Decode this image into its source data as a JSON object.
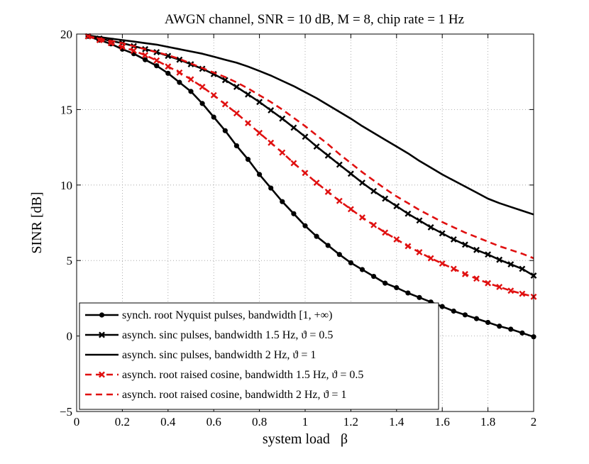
{
  "chart_data": {
    "type": "line",
    "title": "AWGN channel, SNR = 10 dB, M = 8, chip rate = 1 Hz",
    "xlabel": "system load   β",
    "ylabel": "SINR [dB]",
    "xlim": [
      0,
      2
    ],
    "ylim": [
      -5,
      20
    ],
    "grid": true,
    "legend_position": "bottom-left",
    "xticks": [
      0,
      0.2,
      0.4,
      0.6,
      0.8,
      1,
      1.2,
      1.4,
      1.6,
      1.8,
      2
    ],
    "xtick_labels": [
      "0",
      "0.2",
      "0.4",
      "0.6",
      "0.8",
      "1",
      "1.2",
      "1.4",
      "1.6",
      "1.8",
      "2"
    ],
    "yticks": [
      -5,
      0,
      5,
      10,
      15,
      20
    ],
    "ytick_labels": [
      "−5",
      "0",
      "5",
      "10",
      "15",
      "20"
    ],
    "x": [
      0.05,
      0.1,
      0.15,
      0.2,
      0.25,
      0.3,
      0.35,
      0.4,
      0.45,
      0.5,
      0.55,
      0.6,
      0.65,
      0.7,
      0.75,
      0.8,
      0.85,
      0.9,
      0.95,
      1.0,
      1.05,
      1.1,
      1.15,
      1.2,
      1.25,
      1.3,
      1.35,
      1.4,
      1.45,
      1.5,
      1.55,
      1.6,
      1.65,
      1.7,
      1.75,
      1.8,
      1.85,
      1.9,
      1.95,
      2.0
    ],
    "series": [
      {
        "name": "synch. root Nyquist pulses, bandwidth [1, +∞)",
        "color": "#000000",
        "dash": "solid",
        "marker": "dot",
        "values": [
          19.85,
          19.6,
          19.35,
          19.0,
          18.7,
          18.3,
          17.9,
          17.4,
          16.8,
          16.2,
          15.4,
          14.5,
          13.6,
          12.6,
          11.7,
          10.7,
          9.8,
          8.9,
          8.1,
          7.3,
          6.6,
          6.0,
          5.4,
          4.85,
          4.4,
          3.95,
          3.5,
          3.2,
          2.85,
          2.55,
          2.25,
          1.95,
          1.65,
          1.4,
          1.15,
          0.9,
          0.65,
          0.45,
          0.2,
          -0.05
        ]
      },
      {
        "name": "asynch. sinc pulses, bandwidth 1.5 Hz,  ϑ = 0.5",
        "color": "#000000",
        "dash": "solid",
        "marker": "x",
        "values": [
          19.85,
          19.7,
          19.55,
          19.4,
          19.2,
          19.0,
          18.8,
          18.55,
          18.3,
          18.0,
          17.7,
          17.35,
          16.95,
          16.5,
          16.0,
          15.5,
          14.95,
          14.4,
          13.8,
          13.2,
          12.55,
          11.95,
          11.35,
          10.75,
          10.15,
          9.6,
          9.1,
          8.6,
          8.1,
          7.65,
          7.2,
          6.8,
          6.4,
          6.05,
          5.7,
          5.4,
          5.05,
          4.75,
          4.45,
          4.0
        ]
      },
      {
        "name": "asynch. sinc pulses, bandwidth 2 Hz,  ϑ = 1",
        "color": "#000000",
        "dash": "solid",
        "marker": "none",
        "values": [
          19.9,
          19.8,
          19.7,
          19.6,
          19.5,
          19.4,
          19.3,
          19.15,
          19.0,
          18.85,
          18.7,
          18.5,
          18.3,
          18.1,
          17.85,
          17.55,
          17.25,
          16.9,
          16.55,
          16.15,
          15.75,
          15.3,
          14.85,
          14.4,
          13.9,
          13.45,
          13.0,
          12.55,
          12.1,
          11.6,
          11.15,
          10.7,
          10.3,
          9.9,
          9.5,
          9.1,
          8.8,
          8.55,
          8.3,
          8.05
        ]
      },
      {
        "name": "asynch. root raised cosine, bandwidth 1.5 Hz,  ϑ = 0.5",
        "color": "#e01010",
        "dash": "dashed",
        "marker": "x",
        "values": [
          19.85,
          19.6,
          19.4,
          19.15,
          18.9,
          18.6,
          18.25,
          17.85,
          17.45,
          17.0,
          16.5,
          15.95,
          15.35,
          14.75,
          14.1,
          13.45,
          12.8,
          12.15,
          11.45,
          10.8,
          10.15,
          9.55,
          8.95,
          8.4,
          7.85,
          7.35,
          6.85,
          6.4,
          5.95,
          5.55,
          5.15,
          4.8,
          4.45,
          4.1,
          3.8,
          3.5,
          3.25,
          3.0,
          2.8,
          2.6
        ]
      },
      {
        "name": "asynch. root raised cosine, bandwidth 2 Hz,  ϑ = 1",
        "color": "#e01010",
        "dash": "dashed",
        "marker": "none",
        "values": [
          19.85,
          19.7,
          19.55,
          19.4,
          19.2,
          19.0,
          18.8,
          18.6,
          18.35,
          18.05,
          17.75,
          17.45,
          17.15,
          16.8,
          16.4,
          15.95,
          15.5,
          15.0,
          14.45,
          13.9,
          13.3,
          12.7,
          12.05,
          11.45,
          10.85,
          10.3,
          9.75,
          9.25,
          8.8,
          8.35,
          7.95,
          7.55,
          7.2,
          6.85,
          6.55,
          6.25,
          5.95,
          5.7,
          5.45,
          5.15
        ]
      }
    ]
  }
}
